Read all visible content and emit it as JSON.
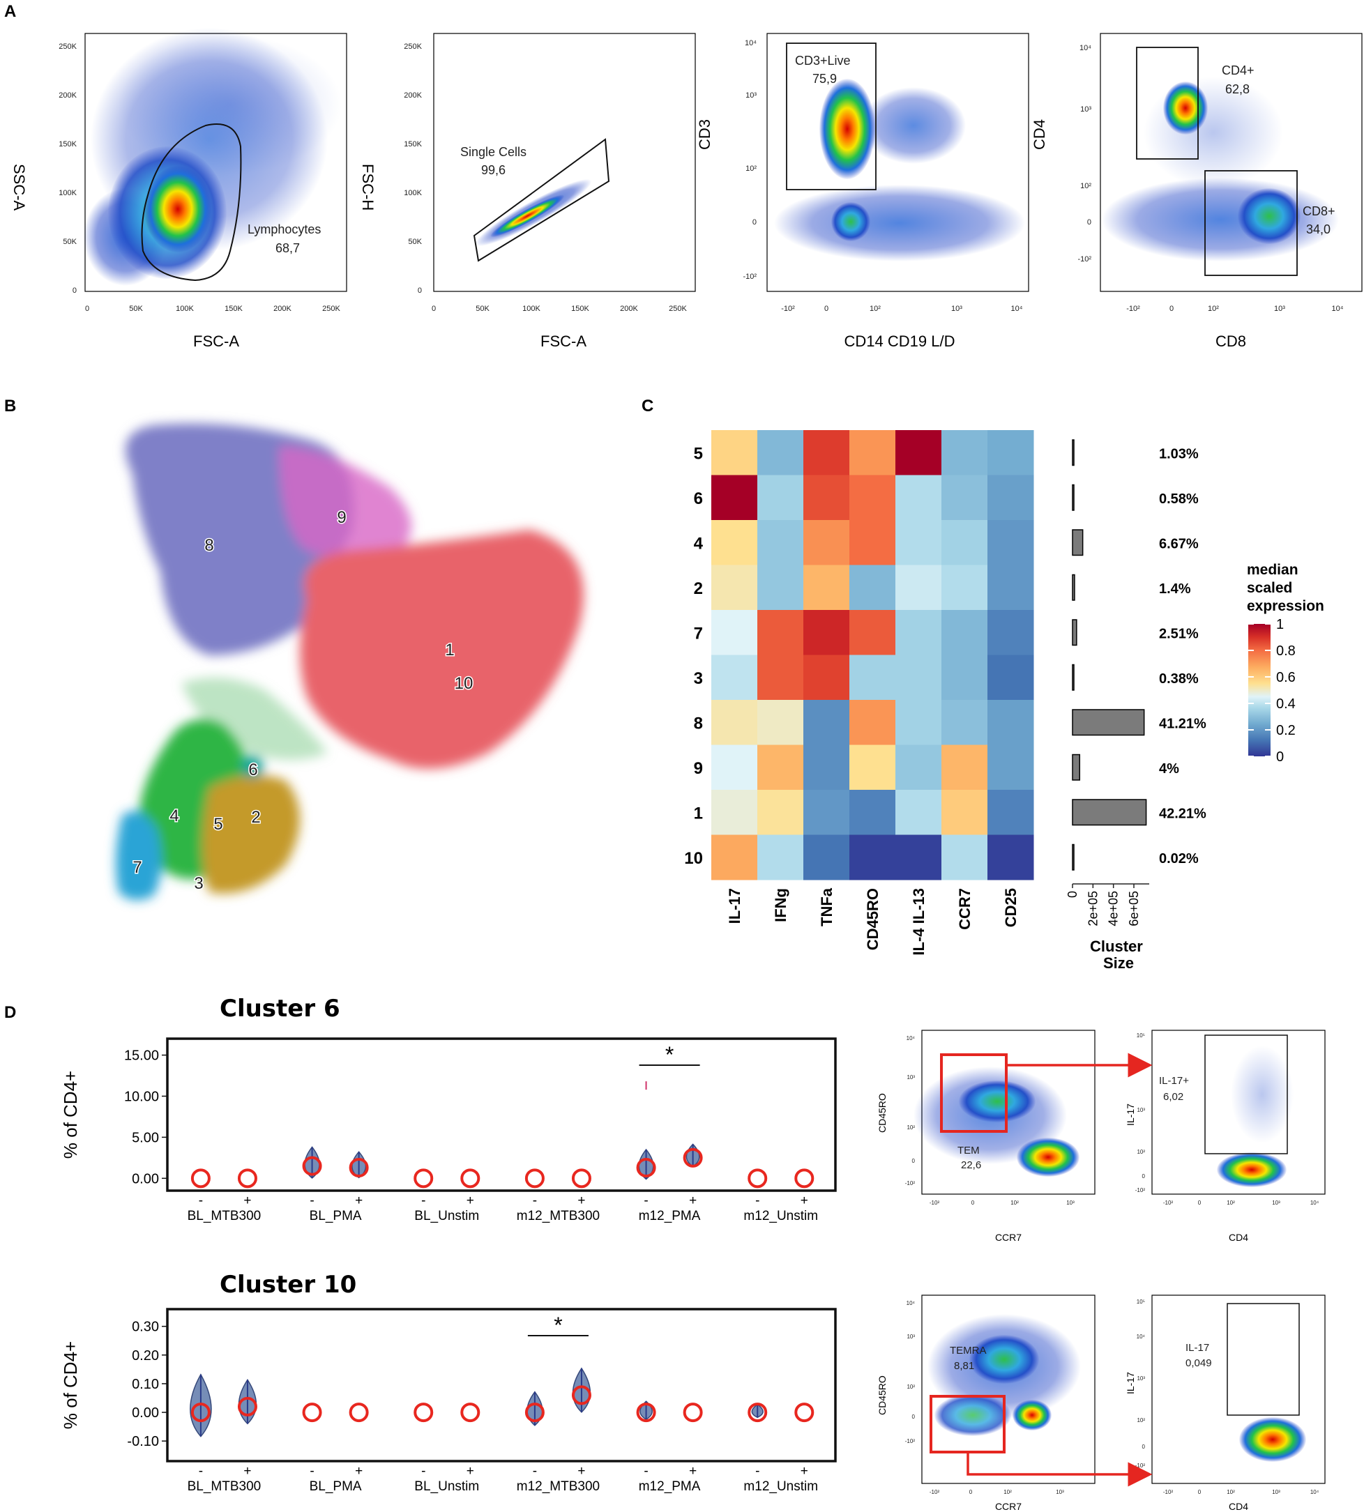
{
  "panel_labels": {
    "a": "A",
    "b": "B",
    "c": "C",
    "d": "D"
  },
  "panel_a": {
    "plots": [
      {
        "xlabel": "FSC-A",
        "ylabel": "SSC-A",
        "gate": "Lymphocytes",
        "value": "68,7",
        "xticks": [
          "0",
          "50K",
          "100K",
          "150K",
          "200K",
          "250K"
        ],
        "yticks": [
          "0",
          "50K",
          "100K",
          "150K",
          "200K",
          "250K"
        ]
      },
      {
        "xlabel": "FSC-A",
        "ylabel": "FSC-H",
        "gate": "Single Cells",
        "value": "99,6",
        "xticks": [
          "0",
          "50K",
          "100K",
          "150K",
          "200K",
          "250K"
        ],
        "yticks": [
          "0",
          "50K",
          "100K",
          "150K",
          "200K",
          "250K"
        ]
      },
      {
        "xlabel": "CD14 CD19 L/D",
        "ylabel": "CD3",
        "gate": "CD3+Live",
        "value": "75,9",
        "xticks": [
          "-10²",
          "0",
          "10²",
          "10³",
          "10⁴"
        ],
        "yticks": [
          "-10²",
          "0",
          "10²",
          "10³",
          "10⁴"
        ]
      },
      {
        "xlabel": "CD8",
        "ylabel": "CD4",
        "gate": "CD4+",
        "value": "62,8",
        "gate2": "CD8+",
        "value2": "34,0",
        "xticks": [
          "-10²",
          "0",
          "10²",
          "10³",
          "10⁴"
        ],
        "yticks": [
          "-10²",
          "0",
          "10²",
          "10³",
          "10⁴"
        ]
      }
    ]
  },
  "panel_b": {
    "clusters": [
      "8",
      "9",
      "1",
      "10",
      "6",
      "4",
      "5",
      "2",
      "7",
      "3"
    ]
  },
  "chart_data": [
    {
      "type": "heatmap",
      "title": "",
      "rows": [
        "5",
        "6",
        "4",
        "2",
        "7",
        "3",
        "8",
        "9",
        "1",
        "10"
      ],
      "columns": [
        "IL-17",
        "IFNg",
        "TNFa",
        "CD45RO",
        "IL-4 IL-13",
        "CCR7",
        "CD25"
      ],
      "values": [
        [
          0.58,
          0.28,
          0.88,
          0.72,
          1.0,
          0.28,
          0.25
        ],
        [
          1.0,
          0.35,
          0.85,
          0.8,
          0.38,
          0.3,
          0.22
        ],
        [
          0.55,
          0.32,
          0.73,
          0.8,
          0.38,
          0.35,
          0.2
        ],
        [
          0.52,
          0.32,
          0.65,
          0.28,
          0.42,
          0.38,
          0.2
        ],
        [
          0.45,
          0.83,
          0.92,
          0.83,
          0.35,
          0.28,
          0.15
        ],
        [
          0.4,
          0.83,
          0.87,
          0.35,
          0.35,
          0.28,
          0.12
        ],
        [
          0.52,
          0.5,
          0.18,
          0.72,
          0.35,
          0.3,
          0.22
        ],
        [
          0.45,
          0.65,
          0.18,
          0.55,
          0.32,
          0.65,
          0.22
        ],
        [
          0.48,
          0.54,
          0.2,
          0.15,
          0.38,
          0.6,
          0.15
        ],
        [
          0.68,
          0.38,
          0.12,
          0.02,
          0.02,
          0.38,
          0.02
        ]
      ],
      "colorbar": {
        "title": "median scaled expression",
        "ticks": [
          "0",
          "0.2",
          "0.4",
          "0.6",
          "0.8",
          "1"
        ],
        "range": [
          0,
          1
        ]
      },
      "cluster_size": {
        "label": "Cluster Size",
        "ticks": [
          "0",
          "2e+05",
          "4e+05",
          "6e+05"
        ],
        "xlim": [
          0,
          750000
        ],
        "values": [
          8000,
          5000,
          100000,
          20000,
          40000,
          4000,
          700000,
          70000,
          720000,
          1000
        ],
        "percentages": [
          "1.03%",
          "0.58%",
          "6.67%",
          "1.4%",
          "2.51%",
          "0.38%",
          "41.21%",
          "4%",
          "42.21%",
          "0.02%"
        ]
      }
    },
    {
      "type": "violin",
      "title": "Cluster 6",
      "ylabel": "% of CD4+",
      "yticks": [
        "15.00",
        "10.00",
        "5.00",
        "0.00"
      ],
      "ylim": [
        -1.5,
        17
      ],
      "signs": [
        "-",
        "+"
      ],
      "groups": [
        "BL_MTB300",
        "BL_PMA",
        "BL_Unstim",
        "m12_MTB300",
        "m12_PMA",
        "m12_Unstim"
      ],
      "medians": [
        0.0,
        0.0,
        1.5,
        1.3,
        0.0,
        0.0,
        0.0,
        0.0,
        1.3,
        2.5,
        0.0,
        0.0
      ],
      "spread": [
        0.0,
        0.0,
        4.2,
        3.5,
        0.0,
        0.0,
        0.0,
        0.0,
        4.0,
        3.0,
        0.0,
        0.0
      ],
      "outliers": [
        null,
        null,
        null,
        null,
        null,
        null,
        null,
        null,
        11.3,
        null,
        null,
        null
      ],
      "significance": {
        "label": "*",
        "between": [
          8,
          9
        ]
      }
    },
    {
      "type": "violin",
      "title": "Cluster 10",
      "ylabel": "% of CD4+",
      "yticks": [
        "0.30",
        "0.20",
        "0.10",
        "0.00",
        "-0.10"
      ],
      "ylim": [
        -0.17,
        0.36
      ],
      "signs": [
        "-",
        "+"
      ],
      "groups": [
        "BL_MTB300",
        "BL_PMA",
        "BL_Unstim",
        "m12_MTB300",
        "m12_PMA",
        "m12_Unstim"
      ],
      "medians": [
        0.0,
        0.02,
        0.0,
        0.0,
        0.0,
        0.0,
        0.0,
        0.06,
        0.0,
        0.0,
        0.0,
        0.0
      ],
      "spread": [
        0.24,
        0.17,
        0.0,
        0.0,
        0.0,
        0.0,
        0.13,
        0.17,
        0.07,
        0.0,
        0.05,
        0.0
      ],
      "outliers": [
        null,
        null,
        null,
        null,
        null,
        null,
        null,
        null,
        null,
        null,
        null,
        null
      ],
      "significance": {
        "label": "*",
        "between": [
          6,
          7
        ]
      }
    }
  ],
  "panel_d_flow": [
    {
      "xlabel": "CCR7",
      "ylabel": "CD45RO",
      "gate": "TEM",
      "value": "22,6",
      "xticks": [
        "-10²",
        "0",
        "10²",
        "10³"
      ],
      "yticks": [
        "10⁴",
        "10³",
        "10²",
        "0",
        "-10²"
      ]
    },
    {
      "xlabel": "CD4",
      "ylabel": "IL-17",
      "gate": "IL-17+",
      "value": "6,02",
      "xticks": [
        "-10²",
        "0",
        "10²",
        "10³",
        "10⁴"
      ],
      "yticks": [
        "10⁵",
        "10⁴",
        "10³",
        "10²",
        "0",
        "-10²"
      ]
    },
    {
      "xlabel": "CCR7",
      "ylabel": "CD45RO",
      "gate": "TEMRA",
      "value": "8,81",
      "xticks": [
        "-10²",
        "0",
        "10²",
        "10³"
      ],
      "yticks": [
        "10⁴",
        "10³",
        "10²",
        "0",
        "-10²"
      ]
    },
    {
      "xlabel": "CD4",
      "ylabel": "IL-17",
      "gate": "IL-17",
      "value": "0,049",
      "xticks": [
        "-10²",
        "0",
        "10²",
        "10³",
        "10⁴"
      ],
      "yticks": [
        "10⁵",
        "10⁴",
        "10³",
        "10²",
        "0",
        "-10²"
      ]
    }
  ],
  "colors": {
    "gate_red": "#e52620",
    "violin_fill": "#6f87b4",
    "violin_edge": "#2b3f73",
    "circle": "#e8271f",
    "bar": "#7b7b7b"
  }
}
